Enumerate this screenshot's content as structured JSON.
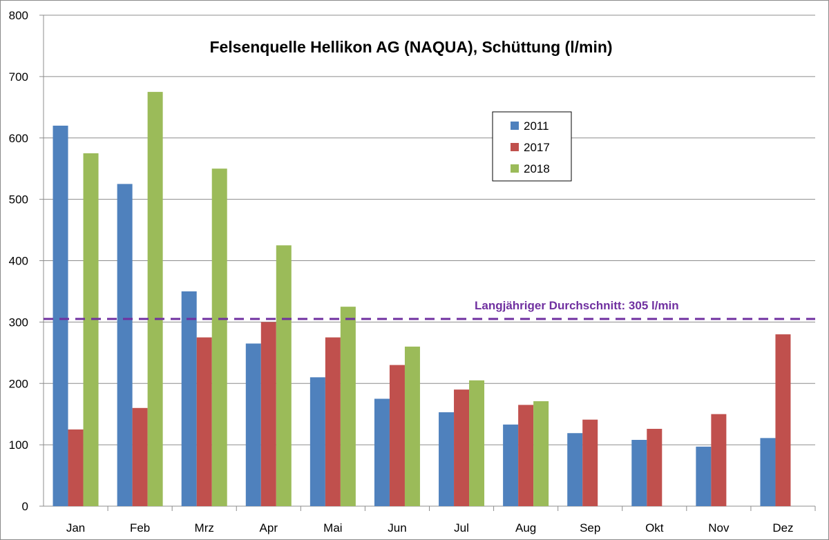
{
  "chart_data": {
    "type": "bar",
    "title": "Felsenquelle Hellikon AG (NAQUA), Schüttung (l/min)",
    "xlabel": "",
    "ylabel": "",
    "ylim": [
      0,
      800
    ],
    "yticks": [
      0,
      100,
      200,
      300,
      400,
      500,
      600,
      700,
      800
    ],
    "categories": [
      "Jan",
      "Feb",
      "Mrz",
      "Apr",
      "Mai",
      "Jun",
      "Jul",
      "Aug",
      "Sep",
      "Okt",
      "Nov",
      "Dez"
    ],
    "series": [
      {
        "name": "2011",
        "color": "#4f81bd",
        "values": [
          620,
          525,
          350,
          265,
          210,
          175,
          153,
          133,
          119,
          108,
          97,
          111
        ]
      },
      {
        "name": "2017",
        "color": "#c0504d",
        "values": [
          125,
          160,
          275,
          300,
          275,
          230,
          190,
          165,
          141,
          126,
          150,
          280
        ]
      },
      {
        "name": "2018",
        "color": "#9bbb59",
        "values": [
          575,
          675,
          550,
          425,
          325,
          260,
          205,
          171,
          null,
          null,
          null,
          null
        ]
      }
    ],
    "reference_line": {
      "value": 305,
      "label": "Langjähriger Durchschnitt: 305 l/min",
      "color": "#7030a0",
      "style": "dashed"
    },
    "grid": true,
    "legend": "top-center"
  }
}
